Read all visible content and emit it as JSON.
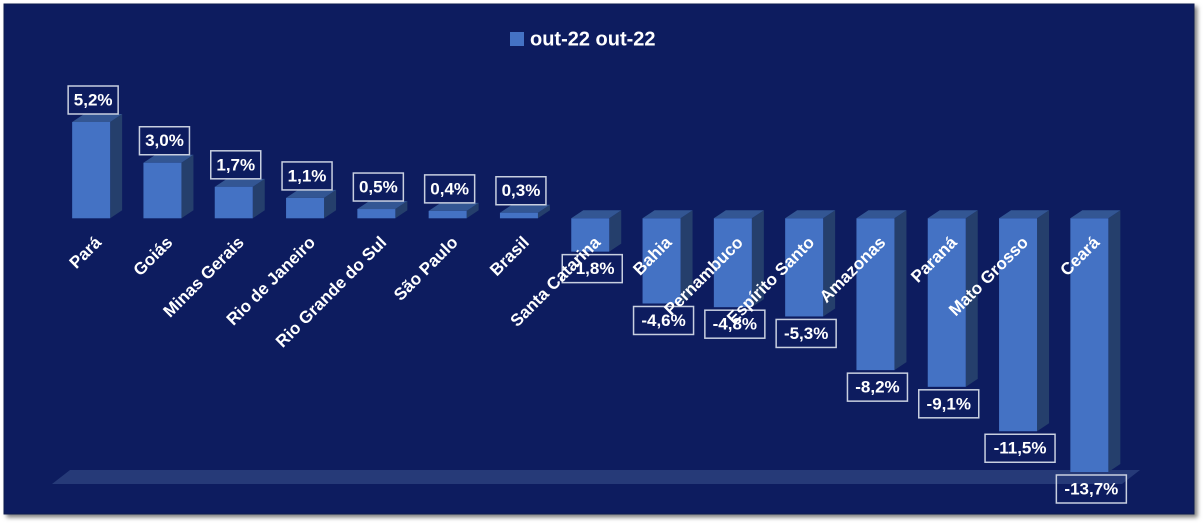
{
  "chart_data": {
    "type": "bar",
    "categories": [
      "Pará",
      "Goiás",
      "Minas Gerais",
      "Rio de Janeiro",
      "Rio Grande do Sul",
      "São Paulo",
      "Brasil",
      "Santa Catarina",
      "Bahia",
      "Pernambuco",
      "Espírito Santo",
      "Amazonas",
      "Paraná",
      "Mato Grosso",
      "Ceará"
    ],
    "series": [
      {
        "name": "out-22 out-22",
        "color": "#4472c4",
        "values": [
          5.2,
          3.0,
          1.7,
          1.1,
          0.5,
          0.4,
          0.3,
          -1.8,
          -4.6,
          -4.8,
          -5.3,
          -8.2,
          -9.1,
          -11.5,
          -13.7
        ],
        "value_labels": [
          "5,2%",
          "3,0%",
          "1,7%",
          "1,1%",
          "0,5%",
          "0,4%",
          "0,3%",
          "-1,8%",
          "-4,6%",
          "-4,8%",
          "-5,3%",
          "-8,2%",
          "-9,1%",
          "-11,5%",
          "-13,7%"
        ]
      }
    ],
    "legend": "top"
  }
}
